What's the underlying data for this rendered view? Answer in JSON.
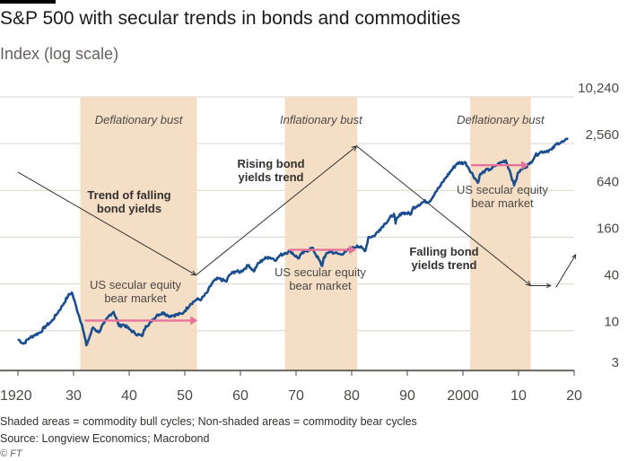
{
  "title": "S&P 500 with secular trends in bonds and commodities",
  "subtitle": "Index (log scale)",
  "footer": {
    "note": "Shaded areas = commodity bull cycles; Non-shaded areas = commodity bear cycles",
    "source": "Source: Longview Economics; Macrobond",
    "credit": "© FT"
  },
  "colors": {
    "line": "#1a4e8f",
    "shade": "#f4dfc6",
    "arrow_pink": "#e8739a",
    "trend_line": "#33302e",
    "grid": "#d9d3cc",
    "text": "#33302e"
  },
  "chart_data": {
    "type": "line",
    "title": "S&P 500 with secular trends in bonds and commodities",
    "ylabel": "Index (log scale)",
    "y_scale": "log",
    "ylim": [
      3,
      10240
    ],
    "xlim": [
      1920,
      2020
    ],
    "y_ticks": [
      3,
      10,
      40,
      160,
      640,
      2560,
      10240
    ],
    "y_tick_labels": [
      "3",
      "10",
      "40",
      "160",
      "640",
      "2,560",
      "10,240"
    ],
    "x_ticks": [
      1920,
      1930,
      1940,
      1950,
      1960,
      1970,
      1980,
      1990,
      2000,
      2010,
      2020
    ],
    "x_tick_labels": [
      "1920",
      "30",
      "40",
      "50",
      "60",
      "70",
      "80",
      "90",
      "2000",
      "10",
      "20"
    ],
    "grid": true,
    "shaded_periods": [
      {
        "start": 1931.2,
        "end": 1952.2,
        "label": "Deflationary bust"
      },
      {
        "start": 1968.0,
        "end": 1981.0,
        "label": "Inflationary bust"
      },
      {
        "start": 2001.3,
        "end": 2012.2,
        "label": "Deflationary bust"
      }
    ],
    "series": [
      {
        "x": [
          1920,
          1921,
          1922,
          1923,
          1924,
          1925,
          1926,
          1927,
          1928,
          1929,
          1929.7,
          1930.5,
          1931.5,
          1932.3,
          1932.8,
          1933.5,
          1934.5,
          1935.5,
          1936.5,
          1937.2,
          1938.2,
          1939,
          1940,
          1941,
          1942.3,
          1943,
          1944,
          1945,
          1946.3,
          1947,
          1948,
          1949.5,
          1950,
          1951,
          1952,
          1953,
          1954,
          1955,
          1956,
          1957.5,
          1958,
          1959,
          1960,
          1961.5,
          1962.4,
          1963,
          1964,
          1965,
          1966.5,
          1967,
          1968,
          1969,
          1970.4,
          1971,
          1972.9,
          1974.7,
          1975,
          1976,
          1977,
          1978,
          1979,
          1980.5,
          1981,
          1982.5,
          1983,
          1984,
          1985,
          1986,
          1987.6,
          1987.9,
          1988,
          1989,
          1990.7,
          1991,
          1992,
          1993,
          1994,
          1995,
          1996,
          1997,
          1998,
          1999,
          2000.5,
          2001,
          2002.7,
          2003,
          2004,
          2005,
          2006,
          2007.7,
          2008.5,
          2009.2,
          2010,
          2011,
          2012,
          2013,
          2014,
          2015,
          2016,
          2017,
          2018,
          2018.9
        ],
        "values": [
          7.8,
          6.8,
          8.0,
          8.8,
          9.5,
          11.5,
          13.0,
          16.5,
          21.0,
          28.0,
          31.0,
          20.0,
          12.0,
          6.5,
          8.0,
          11.0,
          9.5,
          12.5,
          16.0,
          17.5,
          11.5,
          12.0,
          10.5,
          9.3,
          8.5,
          11.5,
          13.0,
          16.0,
          17.0,
          15.5,
          15.8,
          16.5,
          18.0,
          22.0,
          25.0,
          25.5,
          31.0,
          42.0,
          47.0,
          43.0,
          52.0,
          58.0,
          57.0,
          70.0,
          58.0,
          70.0,
          82.0,
          89.0,
          82.0,
          92.0,
          100.0,
          106.0,
          85.0,
          98.0,
          117.0,
          68.0,
          88.0,
          105.0,
          100.0,
          96.0,
          105.0,
          118.0,
          125.0,
          108.0,
          160.0,
          165.0,
          200.0,
          240.0,
          320.0,
          240.0,
          265.0,
          330.0,
          320.0,
          380.0,
          415.0,
          460.0,
          460.0,
          600.0,
          740.0,
          950.0,
          1180.0,
          1440.0,
          1450.0,
          1250.0,
          800.0,
          1000.0,
          1150.0,
          1200.0,
          1350.0,
          1560.0,
          1100.0,
          740.0,
          1100.0,
          1260.0,
          1400.0,
          1800.0,
          2000.0,
          2050.0,
          2150.0,
          2600.0,
          2700.0,
          2900.0
        ]
      }
    ],
    "annotations": [
      {
        "id": "falling-1",
        "lines": [
          "Trend of falling",
          "bond yields"
        ],
        "bold": true
      },
      {
        "id": "rising",
        "lines": [
          "Rising bond",
          "yields trend"
        ],
        "bold": true
      },
      {
        "id": "falling-2",
        "lines": [
          "Falling bond",
          "yields trend"
        ],
        "bold": true
      },
      {
        "id": "bear-1",
        "lines": [
          "US secular equity",
          "bear market"
        ],
        "bold": false
      },
      {
        "id": "bear-2",
        "lines": [
          "US secular equity",
          "bear market"
        ],
        "bold": false
      },
      {
        "id": "bear-3",
        "lines": [
          "US secular equity",
          "bear market"
        ],
        "bold": false
      }
    ],
    "trend_lines": [
      {
        "points": [
          [
            1920,
            1100
          ],
          [
            1952,
            52
          ]
        ]
      },
      {
        "points": [
          [
            1952,
            52
          ],
          [
            1980.9,
            2380
          ]
        ]
      },
      {
        "points": [
          [
            1980.9,
            2380
          ],
          [
            2012.2,
            38
          ]
        ]
      }
    ],
    "bear_market_arrows": [
      {
        "start": 1932,
        "end": 1952.3,
        "value": 13.5
      },
      {
        "start": 1968.7,
        "end": 1980.8,
        "value": 110
      },
      {
        "start": 2001.5,
        "end": 2011.8,
        "value": 1350
      }
    ]
  }
}
